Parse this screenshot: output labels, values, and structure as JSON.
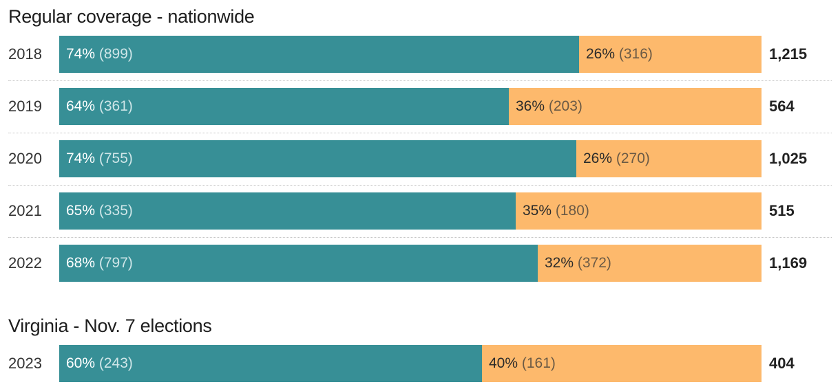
{
  "chart_data": [
    {
      "type": "bar",
      "orientation": "horizontal",
      "stacked": "100%",
      "title": "Regular coverage - nationwide",
      "categories": [
        "2018",
        "2019",
        "2020",
        "2021",
        "2022"
      ],
      "series": [
        {
          "pct_labels": [
            "74%",
            "64%",
            "74%",
            "65%",
            "68%"
          ],
          "count_labels": [
            "(899)",
            "(361)",
            "(755)",
            "(335)",
            "(797)"
          ],
          "values": [
            899,
            361,
            755,
            335,
            797
          ],
          "color": "#378f96"
        },
        {
          "pct_labels": [
            "26%",
            "36%",
            "26%",
            "35%",
            "32%"
          ],
          "count_labels": [
            "(316)",
            "(203)",
            "(270)",
            "(180)",
            "(372)"
          ],
          "values": [
            316,
            203,
            270,
            180,
            372
          ],
          "color": "#fdb96c"
        }
      ],
      "totals": [
        "1,215",
        "564",
        "1,025",
        "515",
        "1,169"
      ]
    },
    {
      "type": "bar",
      "orientation": "horizontal",
      "stacked": "100%",
      "title": "Virginia - Nov. 7 elections",
      "categories": [
        "2023"
      ],
      "series": [
        {
          "pct_labels": [
            "60%"
          ],
          "count_labels": [
            "(243)"
          ],
          "values": [
            243
          ],
          "color": "#378f96"
        },
        {
          "pct_labels": [
            "40%"
          ],
          "count_labels": [
            "(161)"
          ],
          "values": [
            161
          ],
          "color": "#fdb96c"
        }
      ],
      "totals": [
        "404"
      ]
    }
  ]
}
